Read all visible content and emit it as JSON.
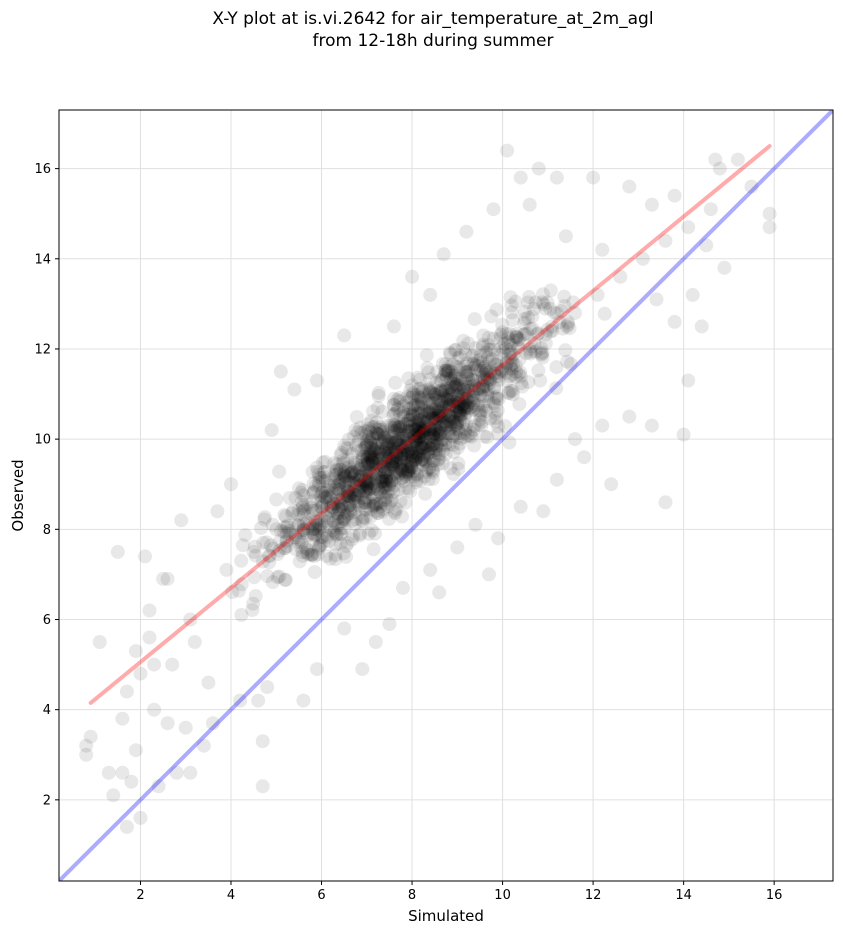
{
  "chart_data": {
    "type": "scatter",
    "title_line1": "X-Y plot at is.vi.2642 for air_temperature_at_2m_agl",
    "title_line2": "from 12-18h during summer",
    "xlabel": "Simulated",
    "ylabel": "Observed",
    "xlim": [
      0.2,
      17.3
    ],
    "ylim": [
      0.2,
      17.3
    ],
    "xticks": [
      2,
      4,
      6,
      8,
      10,
      12,
      14,
      16
    ],
    "yticks": [
      2,
      4,
      6,
      8,
      10,
      12,
      14,
      16
    ],
    "grid": true,
    "colors": {
      "points": "#000000",
      "regression_line": "#ff0000",
      "identity_line": "#0000ff",
      "grid": "#e0e0e0"
    },
    "regression_line": {
      "x": [
        0.9,
        15.9
      ],
      "y": [
        4.15,
        16.5
      ]
    },
    "identity_line": {
      "x": [
        0.2,
        17.3
      ],
      "y": [
        0.2,
        17.3
      ]
    },
    "series": [
      {
        "values": [
          [
            0.8,
            3.2
          ],
          [
            0.8,
            3.0
          ],
          [
            0.9,
            3.4
          ],
          [
            1.1,
            5.5
          ],
          [
            1.3,
            2.6
          ],
          [
            1.4,
            2.1
          ],
          [
            1.5,
            7.5
          ],
          [
            1.6,
            2.6
          ],
          [
            1.6,
            3.8
          ],
          [
            1.7,
            1.4
          ],
          [
            1.7,
            4.4
          ],
          [
            1.8,
            2.4
          ],
          [
            1.9,
            3.1
          ],
          [
            2.0,
            1.6
          ],
          [
            2.1,
            7.4
          ],
          [
            2.2,
            5.6
          ],
          [
            2.3,
            4.0
          ],
          [
            2.4,
            2.3
          ],
          [
            2.5,
            6.9
          ],
          [
            2.6,
            3.7
          ],
          [
            2.7,
            5.0
          ],
          [
            2.8,
            2.6
          ],
          [
            3.0,
            3.6
          ],
          [
            3.1,
            2.6
          ],
          [
            3.2,
            5.5
          ],
          [
            3.4,
            3.2
          ],
          [
            3.5,
            4.6
          ],
          [
            3.6,
            3.7
          ],
          [
            4.2,
            4.2
          ],
          [
            4.6,
            4.2
          ],
          [
            4.7,
            2.3
          ],
          [
            4.7,
            3.3
          ],
          [
            4.8,
            4.5
          ],
          [
            5.6,
            4.2
          ],
          [
            5.9,
            4.9
          ],
          [
            6.5,
            5.8
          ],
          [
            6.9,
            4.9
          ],
          [
            7.2,
            5.5
          ],
          [
            7.5,
            5.9
          ],
          [
            7.8,
            6.7
          ],
          [
            8.4,
            7.1
          ],
          [
            8.6,
            6.6
          ],
          [
            9.0,
            7.6
          ],
          [
            9.4,
            8.1
          ],
          [
            9.7,
            7.0
          ],
          [
            9.9,
            7.8
          ],
          [
            10.4,
            8.5
          ],
          [
            10.9,
            8.4
          ],
          [
            11.2,
            9.1
          ],
          [
            11.6,
            10.0
          ],
          [
            11.8,
            9.6
          ],
          [
            12.2,
            10.3
          ],
          [
            12.4,
            9.0
          ],
          [
            12.8,
            10.5
          ],
          [
            13.3,
            10.3
          ],
          [
            13.6,
            8.6
          ],
          [
            14.0,
            10.1
          ],
          [
            14.1,
            11.3
          ],
          [
            14.4,
            12.5
          ],
          [
            14.9,
            13.8
          ],
          [
            15.9,
            14.7
          ],
          [
            15.9,
            15.0
          ],
          [
            15.5,
            15.6
          ],
          [
            15.2,
            16.2
          ],
          [
            14.7,
            16.2
          ],
          [
            14.8,
            16.0
          ],
          [
            10.1,
            16.4
          ],
          [
            10.8,
            16.0
          ],
          [
            10.4,
            15.8
          ],
          [
            11.2,
            15.8
          ],
          [
            12.0,
            15.8
          ],
          [
            12.8,
            15.6
          ],
          [
            13.3,
            15.2
          ],
          [
            9.8,
            15.1
          ],
          [
            10.6,
            15.2
          ],
          [
            13.8,
            15.4
          ],
          [
            14.5,
            14.3
          ],
          [
            13.4,
            13.1
          ],
          [
            14.2,
            13.2
          ],
          [
            13.8,
            12.6
          ],
          [
            11.4,
            14.5
          ],
          [
            12.2,
            14.2
          ],
          [
            9.2,
            14.6
          ],
          [
            8.7,
            14.1
          ],
          [
            8.0,
            13.6
          ],
          [
            8.4,
            13.2
          ],
          [
            7.6,
            12.5
          ],
          [
            6.5,
            12.3
          ],
          [
            5.9,
            11.3
          ],
          [
            5.1,
            11.5
          ],
          [
            5.4,
            11.1
          ],
          [
            4.9,
            10.2
          ],
          [
            4.0,
            9.0
          ],
          [
            3.7,
            8.4
          ],
          [
            2.9,
            8.2
          ],
          [
            2.2,
            6.2
          ],
          [
            2.6,
            6.9
          ],
          [
            1.9,
            5.3
          ],
          [
            2.3,
            5.0
          ],
          [
            2.0,
            4.8
          ],
          [
            3.1,
            6.0
          ],
          [
            3.9,
            7.1
          ],
          [
            4.5,
            7.5
          ],
          [
            5.0,
            8.0
          ],
          [
            5.6,
            8.4
          ],
          [
            6.1,
            8.8
          ],
          [
            6.6,
            9.2
          ],
          [
            7.1,
            9.6
          ],
          [
            7.6,
            9.9
          ],
          [
            8.1,
            10.2
          ],
          [
            8.6,
            10.6
          ],
          [
            9.1,
            10.9
          ],
          [
            9.6,
            11.3
          ],
          [
            10.1,
            11.7
          ],
          [
            10.6,
            12.0
          ],
          [
            11.1,
            12.4
          ],
          [
            11.6,
            12.8
          ],
          [
            12.1,
            13.2
          ],
          [
            12.6,
            13.6
          ],
          [
            13.1,
            14.0
          ],
          [
            13.6,
            14.4
          ],
          [
            14.1,
            14.7
          ],
          [
            14.6,
            15.1
          ]
        ]
      }
    ]
  }
}
